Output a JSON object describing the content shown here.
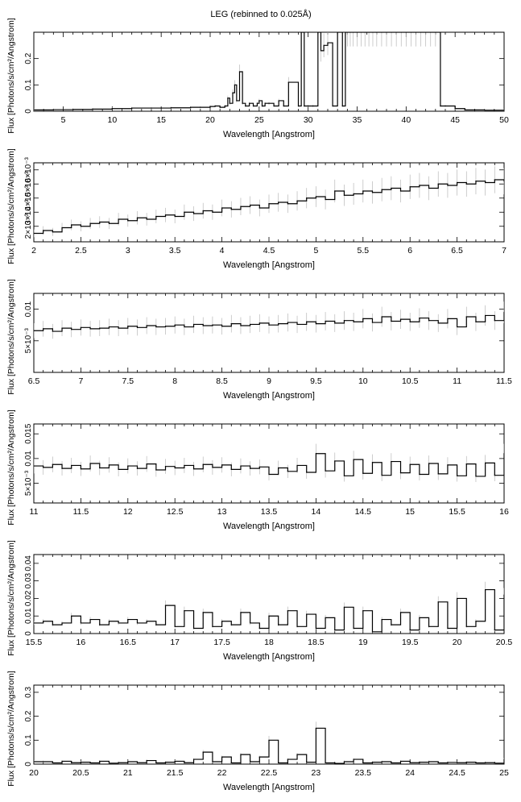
{
  "figure": {
    "title": "LEG (rebinned to 0.025Å)"
  },
  "chart_data": [
    {
      "type": "line",
      "xlabel": "Wavelength [Angstrom]",
      "ylabel": "Flux [Photons/s/cm²/Angstrom]",
      "xlim": [
        2,
        50
      ],
      "ylim": [
        0,
        0.3
      ],
      "xticks": [
        5,
        10,
        15,
        20,
        25,
        30,
        35,
        40,
        45,
        50
      ],
      "yticks": [
        0,
        0.1,
        0.2
      ],
      "ytick_labels": [
        "0",
        "0.1",
        "0.2"
      ],
      "style": "histogram-step",
      "series": [
        {
          "x": [
            2,
            4,
            6,
            8,
            10,
            12,
            14,
            16,
            18,
            19,
            20,
            20.5,
            21,
            21.5,
            21.8,
            22,
            22.3,
            22.5,
            22.7,
            23,
            23.3,
            23.6,
            24,
            24.4,
            24.8,
            25,
            25.3,
            25.6,
            26,
            26.5,
            27,
            27.5,
            28,
            29,
            29.3,
            29.6,
            30,
            30.5,
            31,
            31.3,
            31.6,
            32,
            32.5,
            33,
            33.5,
            33.8,
            34,
            34.3,
            34.6,
            35,
            35.4,
            35.8,
            36.2,
            36.6,
            37,
            37.5,
            38,
            38.5,
            39,
            39.5,
            40,
            40.5,
            41,
            41.5,
            42,
            42.5,
            43,
            43.5,
            44,
            45,
            46,
            48,
            50
          ],
          "y": [
            0.005,
            0.006,
            0.007,
            0.008,
            0.01,
            0.012,
            0.012,
            0.013,
            0.015,
            0.015,
            0.018,
            0.02,
            0.015,
            0.02,
            0.05,
            0.03,
            0.07,
            0.1,
            0.04,
            0.15,
            0.03,
            0.02,
            0.03,
            0.02,
            0.03,
            0.04,
            0.02,
            0.03,
            0.03,
            0.02,
            0.04,
            0.02,
            0.11,
            0.02,
            0.3,
            0.02,
            0.02,
            0.02,
            0.3,
            0.23,
            0.25,
            0.26,
            0.02,
            0.3,
            0.02,
            0.3,
            0.3,
            0.3,
            0.3,
            0.3,
            0.3,
            0.3,
            0.3,
            0.3,
            0.3,
            0.3,
            0.3,
            0.3,
            0.3,
            0.3,
            0.3,
            0.3,
            0.3,
            0.3,
            0.3,
            0.3,
            0.3,
            0.02,
            0.02,
            0.01,
            0.005,
            0.004,
            0.003
          ]
        }
      ]
    },
    {
      "type": "line",
      "xlabel": "Wavelength [Angstrom]",
      "ylabel": "Flux [Photons/s/cm²/Angstrom]",
      "xlim": [
        2,
        7
      ],
      "ylim": [
        0.0009,
        0.0065
      ],
      "xticks": [
        2,
        2.5,
        3,
        3.5,
        4,
        4.5,
        5,
        5.5,
        6,
        6.5,
        7
      ],
      "yticks": [
        0.002,
        0.003,
        0.004,
        0.005,
        0.006
      ],
      "ytick_labels": [
        "2×10⁻³",
        "3×10⁻³",
        "4×10⁻³",
        "5×10⁻³",
        "6×10⁻³"
      ],
      "style": "histogram-step",
      "series": [
        {
          "x": [
            2,
            2.1,
            2.2,
            2.3,
            2.4,
            2.5,
            2.6,
            2.7,
            2.8,
            2.9,
            3,
            3.1,
            3.2,
            3.3,
            3.4,
            3.5,
            3.6,
            3.7,
            3.8,
            3.9,
            4,
            4.1,
            4.2,
            4.3,
            4.4,
            4.5,
            4.6,
            4.7,
            4.8,
            4.9,
            5,
            5.1,
            5.2,
            5.3,
            5.4,
            5.5,
            5.6,
            5.7,
            5.8,
            5.9,
            6,
            6.1,
            6.2,
            6.3,
            6.4,
            6.5,
            6.6,
            6.7,
            6.8,
            6.9,
            7
          ],
          "y": [
            0.0015,
            0.0017,
            0.0016,
            0.0019,
            0.0021,
            0.002,
            0.0022,
            0.0023,
            0.0022,
            0.0025,
            0.0024,
            0.0026,
            0.0025,
            0.0027,
            0.0028,
            0.0027,
            0.003,
            0.0029,
            0.0031,
            0.003,
            0.0033,
            0.0032,
            0.0034,
            0.0035,
            0.0033,
            0.0036,
            0.0037,
            0.0036,
            0.0038,
            0.004,
            0.0041,
            0.0039,
            0.0045,
            0.0042,
            0.0043,
            0.0045,
            0.0044,
            0.0046,
            0.0047,
            0.0045,
            0.0048,
            0.0049,
            0.0047,
            0.005,
            0.0049,
            0.0051,
            0.005,
            0.0052,
            0.0051,
            0.0053,
            0.0052
          ]
        }
      ]
    },
    {
      "type": "line",
      "xlabel": "Wavelength [Angstrom]",
      "ylabel": "Flux [Photons/s/cm²/Angstrom]",
      "xlim": [
        6.5,
        11.5
      ],
      "ylim": [
        0,
        0.0125
      ],
      "xticks": [
        6.5,
        7,
        7.5,
        8,
        8.5,
        9,
        9.5,
        10,
        10.5,
        11,
        11.5
      ],
      "yticks": [
        0.005,
        0.01
      ],
      "ytick_labels": [
        "5×10⁻³",
        "0.01"
      ],
      "style": "histogram-step",
      "series": [
        {
          "x": [
            6.5,
            6.6,
            6.7,
            6.8,
            6.9,
            7,
            7.1,
            7.2,
            7.3,
            7.4,
            7.5,
            7.6,
            7.7,
            7.8,
            7.9,
            8,
            8.1,
            8.2,
            8.3,
            8.4,
            8.5,
            8.6,
            8.7,
            8.8,
            8.9,
            9,
            9.1,
            9.2,
            9.3,
            9.4,
            9.5,
            9.6,
            9.7,
            9.8,
            9.9,
            10,
            10.1,
            10.2,
            10.3,
            10.4,
            10.5,
            10.6,
            10.7,
            10.8,
            10.9,
            11,
            11.1,
            11.2,
            11.3,
            11.4,
            11.5
          ],
          "y": [
            0.0066,
            0.0069,
            0.0065,
            0.007,
            0.0068,
            0.0071,
            0.0069,
            0.007,
            0.0072,
            0.007,
            0.0073,
            0.0071,
            0.0074,
            0.0072,
            0.0073,
            0.0075,
            0.0072,
            0.0076,
            0.0074,
            0.0075,
            0.0073,
            0.0077,
            0.0074,
            0.0076,
            0.0078,
            0.0075,
            0.0077,
            0.0079,
            0.0076,
            0.008,
            0.0077,
            0.0081,
            0.0078,
            0.0082,
            0.008,
            0.0085,
            0.0079,
            0.0088,
            0.0081,
            0.0084,
            0.008,
            0.0086,
            0.0082,
            0.0078,
            0.0085,
            0.0072,
            0.0088,
            0.008,
            0.009,
            0.0082,
            0.0095
          ]
        }
      ]
    },
    {
      "type": "line",
      "xlabel": "Wavelength [Angstrom]",
      "ylabel": "Flux [Photons/s/cm²/Angstrom]",
      "xlim": [
        11,
        16
      ],
      "ylim": [
        0.001,
        0.017
      ],
      "xticks": [
        11,
        11.5,
        12,
        12.5,
        13,
        13.5,
        14,
        14.5,
        15,
        15.5,
        16
      ],
      "yticks": [
        0.005,
        0.01,
        0.015
      ],
      "ytick_labels": [
        "5×10⁻³",
        "0.01",
        "0.015"
      ],
      "style": "histogram-step",
      "series": [
        {
          "x": [
            11,
            11.1,
            11.2,
            11.3,
            11.4,
            11.5,
            11.6,
            11.7,
            11.8,
            11.9,
            12,
            12.1,
            12.2,
            12.3,
            12.4,
            12.5,
            12.6,
            12.7,
            12.8,
            12.9,
            13,
            13.1,
            13.2,
            13.3,
            13.4,
            13.5,
            13.6,
            13.7,
            13.8,
            13.9,
            14,
            14.1,
            14.2,
            14.3,
            14.4,
            14.5,
            14.6,
            14.7,
            14.8,
            14.9,
            15,
            15.1,
            15.2,
            15.3,
            15.4,
            15.5,
            15.6,
            15.7,
            15.8,
            15.9,
            16
          ],
          "y": [
            0.0085,
            0.0082,
            0.0088,
            0.008,
            0.0086,
            0.0079,
            0.009,
            0.0081,
            0.0087,
            0.0078,
            0.0085,
            0.008,
            0.0089,
            0.0077,
            0.0084,
            0.0081,
            0.0086,
            0.0079,
            0.0088,
            0.0082,
            0.0087,
            0.0078,
            0.0085,
            0.008,
            0.0083,
            0.0068,
            0.0081,
            0.0074,
            0.0086,
            0.0072,
            0.011,
            0.0075,
            0.0095,
            0.0065,
            0.0098,
            0.007,
            0.0092,
            0.0066,
            0.0094,
            0.0071,
            0.0088,
            0.0068,
            0.009,
            0.0069,
            0.0087,
            0.0065,
            0.0089,
            0.0064,
            0.0091,
            0.0066,
            0.011
          ]
        }
      ]
    },
    {
      "type": "line",
      "xlabel": "Wavelength [Angstrom]",
      "ylabel": "Flux [Photons/s/cm²/Angstrom]",
      "xlim": [
        15.5,
        20.5
      ],
      "ylim": [
        0,
        0.045
      ],
      "xticks": [
        15.5,
        16,
        16.5,
        17,
        17.5,
        18,
        18.5,
        19,
        19.5,
        20,
        20.5
      ],
      "yticks": [
        0,
        0.01,
        0.02,
        0.03,
        0.04
      ],
      "ytick_labels": [
        "0",
        "0.01",
        "0.02",
        "0.03",
        "0.04"
      ],
      "style": "histogram-step",
      "series": [
        {
          "x": [
            15.5,
            15.6,
            15.7,
            15.8,
            15.9,
            16,
            16.1,
            16.2,
            16.3,
            16.4,
            16.5,
            16.6,
            16.7,
            16.8,
            16.9,
            17,
            17.1,
            17.2,
            17.3,
            17.4,
            17.5,
            17.6,
            17.7,
            17.8,
            17.9,
            18,
            18.1,
            18.2,
            18.3,
            18.4,
            18.5,
            18.6,
            18.7,
            18.8,
            18.9,
            19,
            19.1,
            19.2,
            19.3,
            19.4,
            19.5,
            19.6,
            19.7,
            19.8,
            19.9,
            20,
            20.1,
            20.2,
            20.3,
            20.4,
            20.5
          ],
          "y": [
            0.006,
            0.007,
            0.005,
            0.006,
            0.01,
            0.006,
            0.008,
            0.005,
            0.007,
            0.006,
            0.008,
            0.006,
            0.007,
            0.005,
            0.016,
            0.004,
            0.013,
            0.003,
            0.012,
            0.004,
            0.007,
            0.005,
            0.012,
            0.006,
            0.003,
            0.01,
            0.005,
            0.013,
            0.004,
            0.011,
            0.003,
            0.009,
            0.002,
            0.015,
            0.003,
            0.013,
            0.001,
            0.008,
            0.005,
            0.012,
            0.002,
            0.009,
            0.004,
            0.018,
            0.003,
            0.02,
            0.004,
            0.007,
            0.025,
            0.002,
            0.022
          ]
        }
      ]
    },
    {
      "type": "line",
      "xlabel": "Wavelength [Angstrom]",
      "ylabel": "Flux [Photons/s/cm²/Angstrom]",
      "xlim": [
        20,
        25
      ],
      "ylim": [
        0,
        0.33
      ],
      "xticks": [
        20,
        20.5,
        21,
        21.5,
        22,
        22.5,
        23,
        23.5,
        24,
        24.5,
        25
      ],
      "yticks": [
        0,
        0.1,
        0.2,
        0.3
      ],
      "ytick_labels": [
        "0",
        "0.1",
        "0.2",
        "0.3"
      ],
      "style": "histogram-step",
      "series": [
        {
          "x": [
            20,
            20.1,
            20.2,
            20.3,
            20.4,
            20.5,
            20.6,
            20.7,
            20.8,
            20.9,
            21,
            21.1,
            21.2,
            21.3,
            21.4,
            21.5,
            21.6,
            21.7,
            21.8,
            21.9,
            22,
            22.1,
            22.2,
            22.3,
            22.4,
            22.5,
            22.6,
            22.7,
            22.8,
            22.9,
            23,
            23.1,
            23.2,
            23.3,
            23.4,
            23.5,
            23.6,
            23.7,
            23.8,
            23.9,
            24,
            24.1,
            24.2,
            24.3,
            24.4,
            24.5,
            24.6,
            24.7,
            24.8,
            24.9,
            25
          ],
          "y": [
            0.01,
            0.01,
            0.005,
            0.012,
            0.006,
            0.008,
            0.005,
            0.012,
            0.004,
            0.006,
            0.01,
            0.006,
            0.015,
            0.005,
            0.008,
            0.012,
            0.006,
            0.02,
            0.05,
            0.01,
            0.03,
            0.005,
            0.04,
            0.01,
            0.03,
            0.1,
            0.005,
            0.02,
            0.04,
            0.008,
            0.15,
            0.005,
            0.003,
            0.01,
            0.02,
            0.005,
            0.008,
            0.01,
            0.005,
            0.012,
            0.006,
            0.008,
            0.01,
            0.005,
            0.007,
            0.006,
            0.008,
            0.005,
            0.006,
            0.004,
            0.02
          ]
        }
      ]
    }
  ]
}
